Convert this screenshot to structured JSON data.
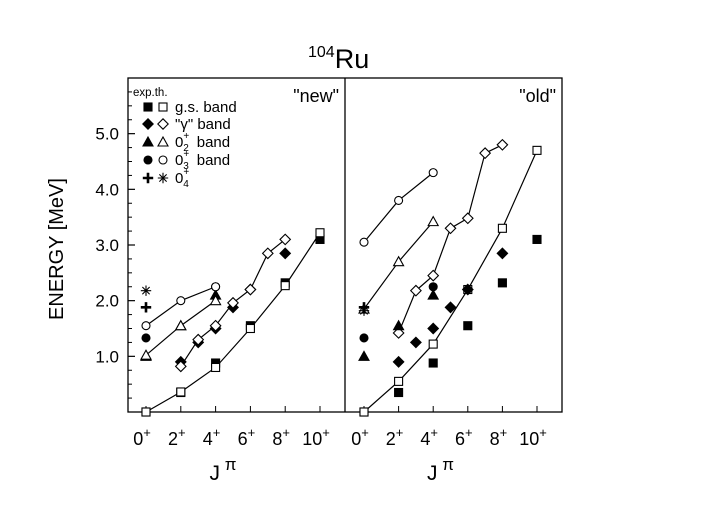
{
  "chart_data": {
    "type": "line",
    "title_sup": "104",
    "title_main": "Ru",
    "ylabel": "ENERGY [MeV]",
    "xlabel_main": "J",
    "xlabel_sup": "π",
    "ylim": [
      0,
      6.0
    ],
    "yticks": [
      "1.0",
      "2.0",
      "3.0",
      "4.0",
      "5.0"
    ],
    "ytick_values": [
      1.0,
      2.0,
      3.0,
      4.0,
      5.0
    ],
    "xticks": [
      {
        "j": 0,
        "label": "0",
        "sup": "+"
      },
      {
        "j": 2,
        "label": "2",
        "sup": "+"
      },
      {
        "j": 4,
        "label": "4",
        "sup": "+"
      },
      {
        "j": 6,
        "label": "6",
        "sup": "+"
      },
      {
        "j": 8,
        "label": "8",
        "sup": "+"
      },
      {
        "j": 10,
        "label": "10",
        "sup": "+"
      }
    ],
    "legend": {
      "header": "exp.th.",
      "entries": [
        {
          "main": "g.s. band"
        },
        {
          "main": "\"γ\"  band"
        },
        {
          "main": "0",
          "sub": "2",
          "sup": "+",
          "tail": "band"
        },
        {
          "main": "0",
          "sub": "3",
          "sup": "+",
          "tail": "band"
        },
        {
          "main": "0",
          "sub": "4",
          "sup": "+",
          "tail": ""
        }
      ]
    },
    "panels": [
      {
        "label": "\"new\"",
        "series": [
          {
            "marker": "square",
            "filled": true,
            "line": false,
            "points": [
              [
                0,
                0
              ],
              [
                2,
                0.35
              ],
              [
                4,
                0.88
              ],
              [
                6,
                1.55
              ],
              [
                8,
                2.32
              ],
              [
                10,
                3.1
              ]
            ]
          },
          {
            "marker": "square",
            "filled": false,
            "line": true,
            "points": [
              [
                0,
                0
              ],
              [
                2,
                0.36
              ],
              [
                4,
                0.8
              ],
              [
                6,
                1.5
              ],
              [
                8,
                2.27
              ],
              [
                10,
                3.22
              ]
            ]
          },
          {
            "marker": "diamond",
            "filled": true,
            "line": false,
            "points": [
              [
                2,
                0.9
              ],
              [
                3,
                1.25
              ],
              [
                4,
                1.5
              ],
              [
                5,
                1.88
              ],
              [
                6,
                2.2
              ],
              [
                8,
                2.85
              ]
            ]
          },
          {
            "marker": "diamond",
            "filled": false,
            "line": true,
            "points": [
              [
                2,
                0.82
              ],
              [
                3,
                1.3
              ],
              [
                4,
                1.55
              ],
              [
                5,
                1.96
              ],
              [
                6,
                2.2
              ],
              [
                7,
                2.85
              ],
              [
                8,
                3.1
              ]
            ]
          },
          {
            "marker": "triangle",
            "filled": true,
            "line": false,
            "points": [
              [
                0,
                1.0
              ],
              [
                2,
                1.55
              ],
              [
                4,
                2.1
              ]
            ]
          },
          {
            "marker": "triangle",
            "filled": false,
            "line": true,
            "points": [
              [
                0,
                1.02
              ],
              [
                2,
                1.55
              ],
              [
                4,
                2.0
              ]
            ]
          },
          {
            "marker": "circle",
            "filled": true,
            "line": false,
            "points": [
              [
                0,
                1.33
              ],
              [
                4,
                2.25
              ]
            ]
          },
          {
            "marker": "circle",
            "filled": false,
            "line": true,
            "points": [
              [
                0,
                1.55
              ],
              [
                2,
                2.0
              ],
              [
                4,
                2.25
              ]
            ]
          },
          {
            "marker": "plus",
            "filled": true,
            "line": false,
            "points": [
              [
                0,
                1.88
              ]
            ]
          },
          {
            "marker": "asterisk",
            "filled": false,
            "line": false,
            "points": [
              [
                0,
                2.18
              ]
            ]
          }
        ]
      },
      {
        "label": "\"old\"",
        "series": [
          {
            "marker": "square",
            "filled": true,
            "line": false,
            "points": [
              [
                0,
                0
              ],
              [
                2,
                0.35
              ],
              [
                4,
                0.88
              ],
              [
                6,
                1.55
              ],
              [
                8,
                2.32
              ],
              [
                10,
                3.1
              ]
            ]
          },
          {
            "marker": "square",
            "filled": false,
            "line": true,
            "points": [
              [
                0,
                0
              ],
              [
                2,
                0.55
              ],
              [
                4,
                1.22
              ],
              [
                6,
                2.2
              ],
              [
                8,
                3.3
              ],
              [
                10,
                4.7
              ]
            ]
          },
          {
            "marker": "diamond",
            "filled": true,
            "line": false,
            "points": [
              [
                2,
                0.9
              ],
              [
                3,
                1.25
              ],
              [
                4,
                1.5
              ],
              [
                5,
                1.88
              ],
              [
                6,
                2.2
              ],
              [
                8,
                2.85
              ]
            ]
          },
          {
            "marker": "diamond",
            "filled": false,
            "line": true,
            "points": [
              [
                2,
                1.42
              ],
              [
                3,
                2.18
              ],
              [
                4,
                2.45
              ],
              [
                5,
                3.3
              ],
              [
                6,
                3.48
              ],
              [
                7,
                4.65
              ],
              [
                8,
                4.8
              ]
            ]
          },
          {
            "marker": "triangle",
            "filled": true,
            "line": false,
            "points": [
              [
                0,
                1.0
              ],
              [
                2,
                1.55
              ],
              [
                4,
                2.1
              ]
            ]
          },
          {
            "marker": "triangle",
            "filled": false,
            "line": true,
            "points": [
              [
                0,
                1.85
              ],
              [
                2,
                2.7
              ],
              [
                4,
                3.42
              ]
            ]
          },
          {
            "marker": "circle",
            "filled": true,
            "line": false,
            "points": [
              [
                0,
                1.33
              ],
              [
                4,
                2.25
              ]
            ]
          },
          {
            "marker": "circle",
            "filled": false,
            "line": true,
            "points": [
              [
                0,
                3.05
              ],
              [
                2,
                3.8
              ],
              [
                4,
                4.3
              ]
            ]
          },
          {
            "marker": "plus",
            "filled": true,
            "line": false,
            "points": [
              [
                0,
                1.88
              ]
            ]
          },
          {
            "marker": "asterisk",
            "filled": false,
            "line": false,
            "points": [
              [
                0,
                1.82
              ]
            ]
          }
        ]
      }
    ]
  }
}
